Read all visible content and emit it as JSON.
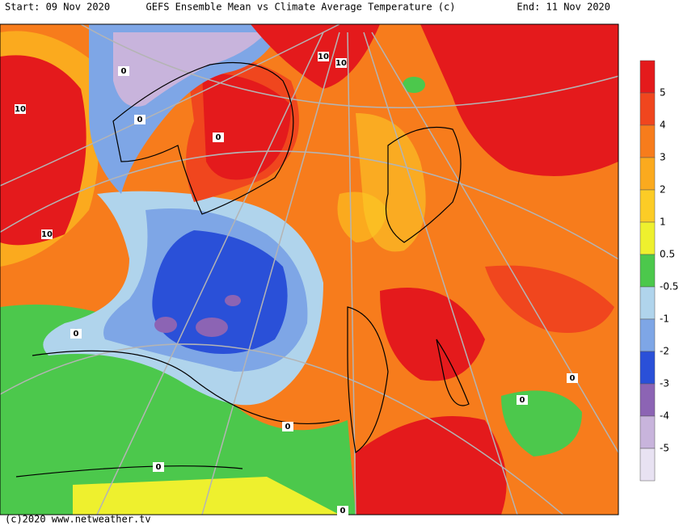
{
  "header": {
    "start": "Start: 09 Nov 2020",
    "title": "GEFS Ensemble Mean vs Climate Average Temperature (c)",
    "end": "End: 11 Nov 2020"
  },
  "footer": "(c)2020 www.netweather.tv",
  "colorbar": {
    "levels": [
      5,
      4,
      3,
      2,
      1,
      0.5,
      -0.5,
      -1,
      -2,
      -3,
      -4,
      -5
    ],
    "colors": [
      "#e41a1c",
      "#f0461e",
      "#f77c1c",
      "#fbaa1e",
      "#fccc26",
      "#eef02e",
      "#4cc84c",
      "#b0d4ec",
      "#7ea6e6",
      "#2a50d8",
      "#8c64b4",
      "#c8b4dc",
      "#e8e2f2"
    ]
  },
  "contour_labels": [
    10,
    10,
    10,
    10,
    0,
    0,
    0,
    0,
    0,
    0,
    0,
    0,
    0
  ]
}
